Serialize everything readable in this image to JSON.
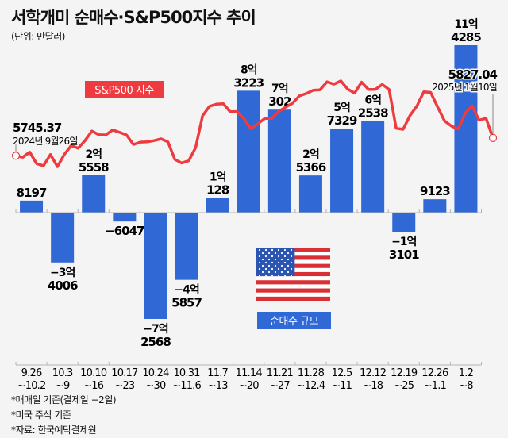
{
  "header": {
    "title": "서학개미 순매수·S&P500지수 추이",
    "unit": "(단위: 만달러)"
  },
  "legend": {
    "line_label": "S&P500 지수",
    "bar_label": "순매수 규모"
  },
  "flag": "us-flag",
  "annotations": {
    "start_value": "5745.37",
    "start_date": "2024년 9월26일",
    "end_value": "5827.04",
    "end_date": "2025년 1월10일"
  },
  "notes": [
    "*매매일 기준(결제일 −2일)",
    "*미국 주식 기준",
    "*자료: 한국예탁결제원"
  ],
  "colors": {
    "bar": "#3068d6",
    "line": "#ee3b3f",
    "background": "#f4f4f4"
  },
  "chart_data": [
    {
      "type": "bar",
      "title": "순매수 규모",
      "unit": "만달러",
      "categories": [
        [
          "9.26",
          "~10.2"
        ],
        [
          "10.3",
          "~9"
        ],
        [
          "10.10",
          "~16"
        ],
        [
          "10.17",
          "~23"
        ],
        [
          "10.24",
          "~30"
        ],
        [
          "10.31",
          "~11.6"
        ],
        [
          "11.7",
          "~13"
        ],
        [
          "11.14",
          "~20"
        ],
        [
          "11.21",
          "~27"
        ],
        [
          "11.28",
          "~12.4"
        ],
        [
          "12.5",
          "~11"
        ],
        [
          "12.12",
          "~18"
        ],
        [
          "12.19",
          "~25"
        ],
        [
          "12.26",
          "~1.1"
        ],
        [
          "1.2",
          "~8"
        ]
      ],
      "values": [
        8197,
        -34006,
        25558,
        -6047,
        -72568,
        -45857,
        10128,
        83223,
        70302,
        25366,
        57329,
        62538,
        -13101,
        9123,
        114285
      ],
      "labels": [
        [
          "",
          "8197"
        ],
        [
          "−3억",
          "4006"
        ],
        [
          "2억",
          "5558"
        ],
        [
          "",
          "−6047"
        ],
        [
          "−7억",
          "2568"
        ],
        [
          "−4억",
          "5857"
        ],
        [
          "1억",
          "128"
        ],
        [
          "8억",
          "3223"
        ],
        [
          "7억",
          "302"
        ],
        [
          "2억",
          "5366"
        ],
        [
          "5억",
          "7329"
        ],
        [
          "6억",
          "2538"
        ],
        [
          "−1억",
          "3101"
        ],
        [
          "",
          "9123"
        ],
        [
          "11억",
          "4285"
        ]
      ]
    },
    {
      "type": "line",
      "title": "S&P500 지수",
      "start": {
        "value": 5745.37,
        "date": "2024년 9월26일"
      },
      "end": {
        "value": 5827.04,
        "date": "2025년 1월10일"
      },
      "values": [
        5745.37,
        5738,
        5762,
        5709,
        5699,
        5751,
        5695,
        5751,
        5792,
        5780,
        5815,
        5859,
        5842,
        5841,
        5864,
        5853,
        5841,
        5797,
        5808,
        5809,
        5815,
        5823,
        5809,
        5728,
        5712,
        5722,
        5783,
        5929,
        5973,
        5983,
        5985,
        5948,
        5949,
        5916,
        5870,
        5893,
        5917,
        5917,
        5949,
        5969,
        5987,
        6021,
        6032,
        6047,
        6049,
        6086,
        6075,
        6090,
        6052,
        6034,
        6084,
        6051,
        6051,
        6074,
        6050,
        5872,
        5867,
        5930,
        5974,
        6040,
        6037,
        5970,
        5906,
        5882,
        5868,
        5942,
        5975,
        5909,
        5918,
        5827.04
      ]
    }
  ]
}
